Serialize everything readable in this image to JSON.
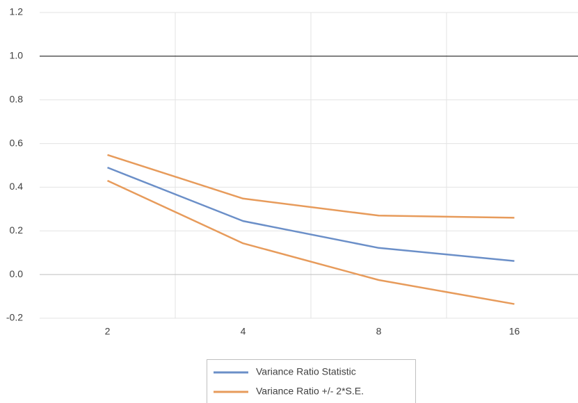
{
  "chart_data": {
    "type": "line",
    "categories": [
      "2",
      "4",
      "8",
      "16"
    ],
    "series": [
      {
        "name": "Variance Ratio Statistic",
        "color": "#6b8fc8",
        "values": [
          0.49,
          0.245,
          0.122,
          0.062
        ]
      },
      {
        "name": "Variance Ratio +/- 2*S.E.",
        "color": "#e79b5b",
        "values": [
          0.548,
          0.348,
          0.27,
          0.26
        ]
      },
      {
        "name": "Variance Ratio +/- 2*S.E.",
        "color": "#e79b5b",
        "values": [
          0.43,
          0.143,
          -0.025,
          -0.135
        ]
      }
    ],
    "ylim": [
      -0.2,
      1.2
    ],
    "yticks": [
      -0.2,
      {
        "value": 0,
        "label": "0.0"
      },
      0.2,
      0.4,
      0.6,
      0.8,
      {
        "value": 1,
        "label": "1.0"
      },
      1.2
    ],
    "grid": true,
    "reference_line": {
      "value": 1,
      "color": "#000000"
    },
    "legend": "bottom"
  }
}
